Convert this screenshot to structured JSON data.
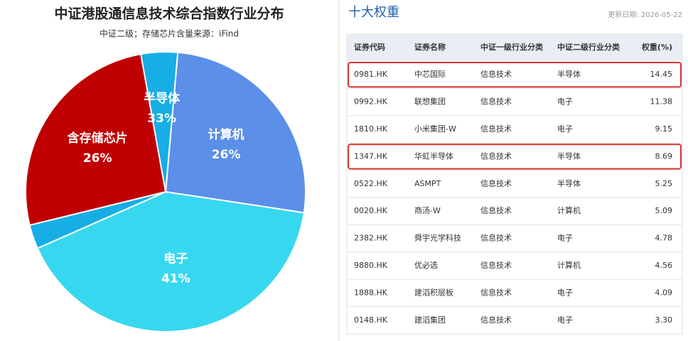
{
  "chart_data": {
    "type": "pie",
    "title": "中证港股通信息技术综合指数行业分布",
    "subtitle": "中证二级；存储芯片含量来源：iFind",
    "categories": [
      "计算机",
      "电子",
      "半导体"
    ],
    "values": [
      26,
      41,
      33
    ],
    "value_labels": [
      "26%",
      "41%",
      "33%"
    ],
    "colors": [
      "#5b8fe8",
      "#38d7f0",
      "#17aee6"
    ],
    "highlight": {
      "name": "含存储芯片",
      "value": 26,
      "value_label": "26%",
      "color": "#c00000"
    }
  },
  "table": {
    "title": "十大权重",
    "updated": "更新日期: 2026-05-22",
    "headers": [
      "证券代码",
      "证券名称",
      "中证一级行业分类",
      "中证二级行业分类",
      "权重(%)"
    ],
    "rows": [
      [
        "0981.HK",
        "中芯国际",
        "信息技术",
        "半导体",
        "14.45"
      ],
      [
        "0992.HK",
        "联想集团",
        "信息技术",
        "电子",
        "11.38"
      ],
      [
        "1810.HK",
        "小米集团-W",
        "信息技术",
        "电子",
        "9.15"
      ],
      [
        "1347.HK",
        "华虹半导体",
        "信息技术",
        "半导体",
        "8.69"
      ],
      [
        "0522.HK",
        "ASMPT",
        "信息技术",
        "半导体",
        "5.25"
      ],
      [
        "0020.HK",
        "商汤-W",
        "信息技术",
        "计算机",
        "5.09"
      ],
      [
        "2382.HK",
        "舜宇光学科技",
        "信息技术",
        "电子",
        "4.78"
      ],
      [
        "9880.HK",
        "优必选",
        "信息技术",
        "计算机",
        "4.56"
      ],
      [
        "1888.HK",
        "建滔积层板",
        "信息技术",
        "电子",
        "4.09"
      ],
      [
        "0148.HK",
        "建滔集团",
        "信息技术",
        "电子",
        "3.30"
      ]
    ],
    "highlight_rows": [
      0,
      3
    ]
  }
}
